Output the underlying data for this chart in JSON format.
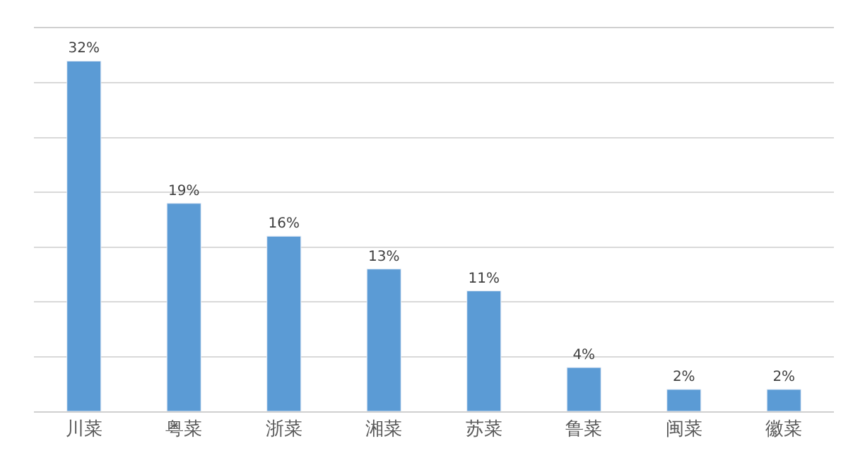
{
  "chart_data": {
    "type": "bar",
    "categories": [
      "川菜",
      "粤菜",
      "浙菜",
      "湘菜",
      "苏菜",
      "鲁菜",
      "闽菜",
      "徽菜"
    ],
    "values": [
      32,
      19,
      16,
      13,
      11,
      4,
      2,
      2
    ],
    "value_labels": [
      "32%",
      "19%",
      "16%",
      "13%",
      "11%",
      "4%",
      "2%",
      "2%"
    ],
    "color": "#5b9bd5",
    "ylim": [
      0,
      35
    ],
    "yticks": [
      {
        "value": 0,
        "label": null
      },
      {
        "value": 5,
        "label": null
      },
      {
        "value": 10,
        "label": null
      },
      {
        "value": 15,
        "label": null
      },
      {
        "value": 20,
        "label": null
      },
      {
        "value": 25,
        "label": null
      },
      {
        "value": 30,
        "label": null
      }
    ],
    "grid": "y",
    "tick_labels": "x"
  }
}
